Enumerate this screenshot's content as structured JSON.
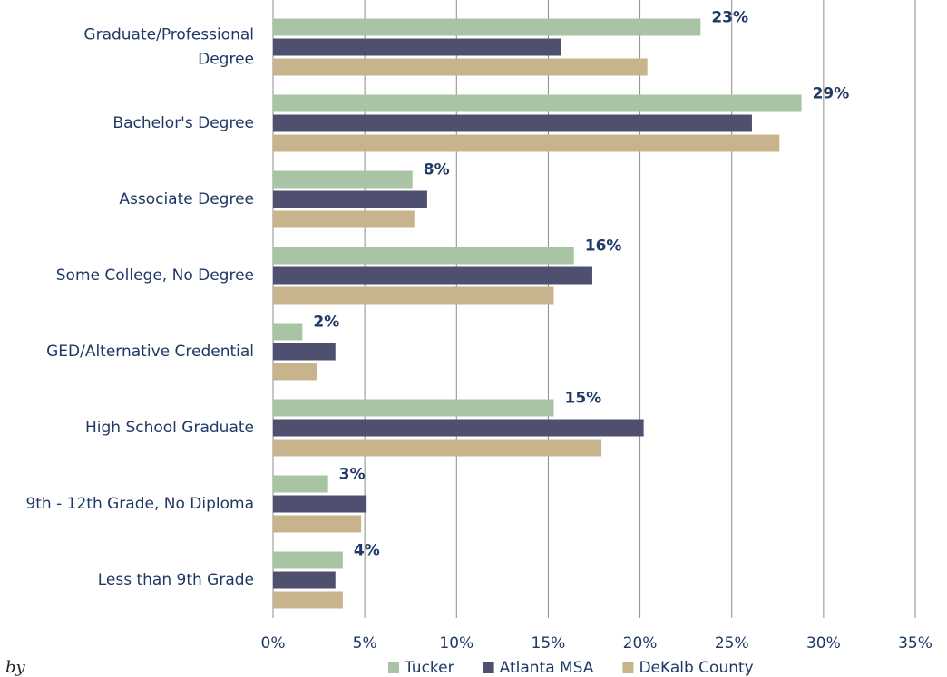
{
  "chart_data": {
    "type": "hbar",
    "categories": [
      [
        "Graduate/Professional",
        "Degree"
      ],
      "Bachelor's Degree",
      "Associate Degree",
      "Some College, No Degree",
      "GED/Alternative Credential",
      "High School Graduate",
      "9th - 12th Grade, No Diploma",
      "Less than 9th Grade"
    ],
    "series": [
      {
        "name": "Tucker",
        "color": "#a9c4a4",
        "values": [
          23.3,
          28.8,
          7.6,
          16.4,
          1.6,
          15.3,
          3.0,
          3.8
        ],
        "value_labels": [
          "23%",
          "29%",
          "8%",
          "16%",
          "2%",
          "15%",
          "3%",
          "4%"
        ]
      },
      {
        "name": "Atlanta MSA",
        "color": "#4f5070",
        "values": [
          15.7,
          26.1,
          8.4,
          17.4,
          3.4,
          20.2,
          5.1,
          3.4
        ]
      },
      {
        "name": "DeKalb County",
        "color": "#c8b48c",
        "values": [
          20.4,
          27.6,
          7.7,
          15.3,
          2.4,
          17.9,
          4.8,
          3.8
        ]
      }
    ],
    "xlim": [
      0,
      35
    ],
    "xticks": [
      {
        "value": 0,
        "label": "0%"
      },
      {
        "value": 5,
        "label": "5%"
      },
      {
        "value": 10,
        "label": "10%"
      },
      {
        "value": 15,
        "label": "15%"
      },
      {
        "value": 20,
        "label": "20%"
      },
      {
        "value": 25,
        "label": "25%"
      },
      {
        "value": 30,
        "label": "30%"
      },
      {
        "value": 35,
        "label": "35%"
      }
    ],
    "grid": true,
    "legend": "bottom",
    "note": "by"
  }
}
